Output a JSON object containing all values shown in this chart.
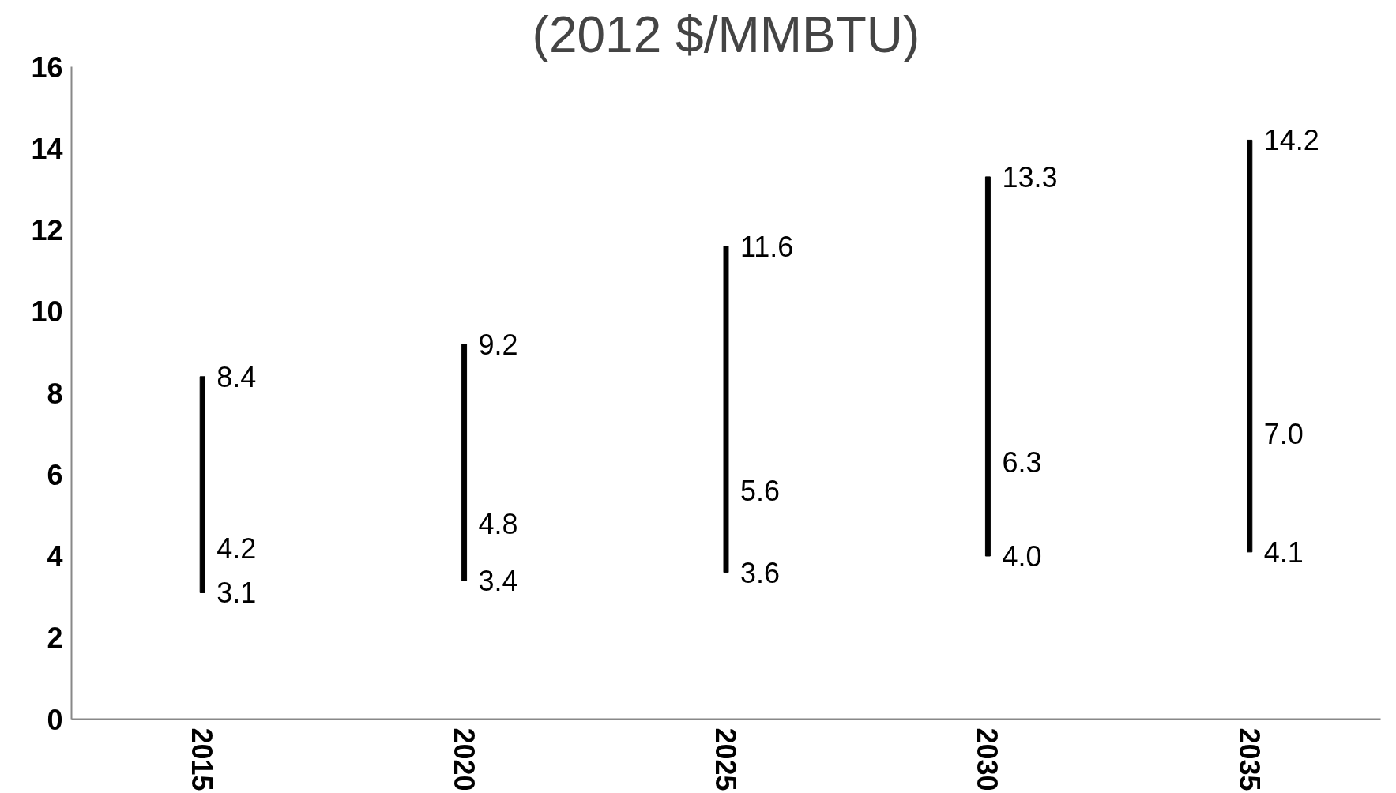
{
  "chart_data": {
    "type": "bar",
    "title": "(2012 $/MMBTU)",
    "categories": [
      "2015",
      "2020",
      "2025",
      "2030",
      "2035"
    ],
    "base": [
      3.1,
      3.4,
      3.6,
      4.0,
      4.1
    ],
    "values": [
      5.3,
      5.8,
      8.0,
      9.3,
      10.1
    ],
    "color": "#000000",
    "ylim": [
      0,
      16
    ],
    "yticks": [
      0,
      2,
      4,
      6,
      8,
      10,
      12,
      14,
      16
    ],
    "grid": false,
    "annotations": [
      {
        "text": "8.4",
        "x": "2015",
        "y": 8.4
      },
      {
        "text": "4.2",
        "x": "2015",
        "y": 4.2
      },
      {
        "text": "3.1",
        "x": "2015",
        "y": 3.1
      },
      {
        "text": "9.2",
        "x": "2020",
        "y": 9.2
      },
      {
        "text": "4.8",
        "x": "2020",
        "y": 4.8
      },
      {
        "text": "3.4",
        "x": "2020",
        "y": 3.4
      },
      {
        "text": "11.6",
        "x": "2025",
        "y": 11.6
      },
      {
        "text": "5.6",
        "x": "2025",
        "y": 5.6
      },
      {
        "text": "3.6",
        "x": "2025",
        "y": 3.6
      },
      {
        "text": "13.3",
        "x": "2030",
        "y": 13.3
      },
      {
        "text": "6.3",
        "x": "2030",
        "y": 6.3
      },
      {
        "text": "4.0",
        "x": "2030",
        "y": 4.0
      },
      {
        "text": "14.2",
        "x": "2035",
        "y": 14.2
      },
      {
        "text": "7.0",
        "x": "2035",
        "y": 7.0
      },
      {
        "text": "4.1",
        "x": "2035",
        "y": 4.1
      }
    ]
  }
}
